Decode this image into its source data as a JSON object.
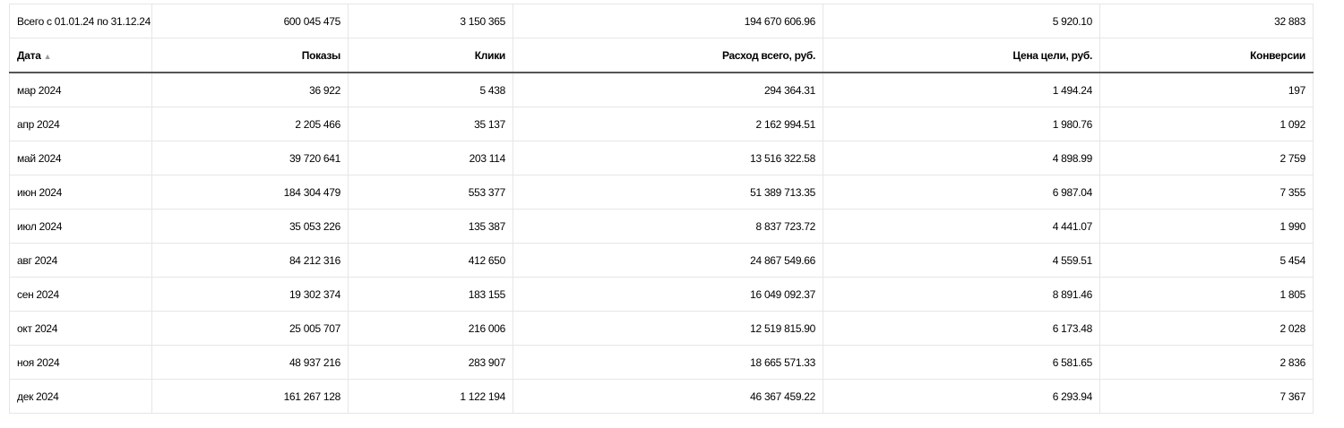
{
  "table": {
    "total": {
      "label": "Всего с 01.01.24 по 31.12.24",
      "shows": "600 045 475",
      "clicks": "3 150 365",
      "cost": "194 670 606.96",
      "goal_price": "5 920.10",
      "conversions": "32 883"
    },
    "headers": {
      "date": "Дата",
      "date_sort_icon": "▲",
      "shows": "Показы",
      "clicks": "Клики",
      "cost": "Расход всего, руб.",
      "goal_price": "Цена цели, руб.",
      "conversions": "Конверсии"
    },
    "rows": [
      {
        "date": "мар 2024",
        "shows": "36 922",
        "clicks": "5 438",
        "cost": "294 364.31",
        "goal_price": "1 494.24",
        "conversions": "197"
      },
      {
        "date": "апр 2024",
        "shows": "2 205 466",
        "clicks": "35 137",
        "cost": "2 162 994.51",
        "goal_price": "1 980.76",
        "conversions": "1 092"
      },
      {
        "date": "май 2024",
        "shows": "39 720 641",
        "clicks": "203 114",
        "cost": "13 516 322.58",
        "goal_price": "4 898.99",
        "conversions": "2 759"
      },
      {
        "date": "июн 2024",
        "shows": "184 304 479",
        "clicks": "553 377",
        "cost": "51 389 713.35",
        "goal_price": "6 987.04",
        "conversions": "7 355"
      },
      {
        "date": "июл 2024",
        "shows": "35 053 226",
        "clicks": "135 387",
        "cost": "8 837 723.72",
        "goal_price": "4 441.07",
        "conversions": "1 990"
      },
      {
        "date": "авг 2024",
        "shows": "84 212 316",
        "clicks": "412 650",
        "cost": "24 867 549.66",
        "goal_price": "4 559.51",
        "conversions": "5 454"
      },
      {
        "date": "сен 2024",
        "shows": "19 302 374",
        "clicks": "183 155",
        "cost": "16 049 092.37",
        "goal_price": "8 891.46",
        "conversions": "1 805"
      },
      {
        "date": "окт 2024",
        "shows": "25 005 707",
        "clicks": "216 006",
        "cost": "12 519 815.90",
        "goal_price": "6 173.48",
        "conversions": "2 028"
      },
      {
        "date": "ноя 2024",
        "shows": "48 937 216",
        "clicks": "283 907",
        "cost": "18 665 571.33",
        "goal_price": "6 581.65",
        "conversions": "2 836"
      },
      {
        "date": "дек 2024",
        "shows": "161 267 128",
        "clicks": "1 122 194",
        "cost": "46 367 459.22",
        "goal_price": "6 293.94",
        "conversions": "7 367"
      }
    ]
  }
}
